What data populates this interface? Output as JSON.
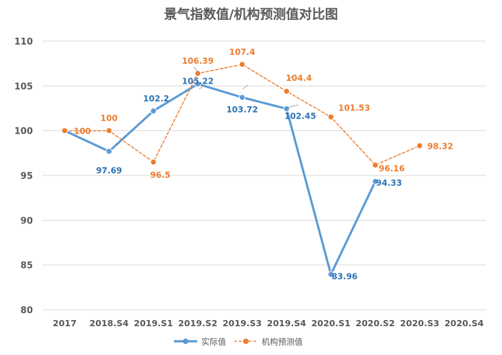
{
  "chart_data": {
    "type": "line",
    "title": "景气指数值/机构预测值对比图",
    "categories": [
      "2017",
      "2018.S4",
      "2019.S1",
      "2019.S2",
      "2019.S3",
      "2019.S4",
      "2020.S1",
      "2020.S2",
      "2020.S3",
      "2020.S4"
    ],
    "ylim": [
      80,
      110
    ],
    "yticks": [
      80,
      85,
      90,
      95,
      100,
      105,
      110
    ],
    "grid": true,
    "legend_position": "bottom",
    "series": [
      {
        "name": "实际值",
        "color": "#5B9BD5",
        "style": "solid",
        "values": [
          100,
          97.69,
          102.2,
          105.22,
          103.72,
          102.45,
          83.96,
          94.33,
          null,
          null
        ],
        "labels": [
          "",
          "97.69",
          "102.2",
          "105.22",
          "103.72",
          "102.45",
          "83.96",
          "94.33",
          "",
          ""
        ]
      },
      {
        "name": "机构预测值",
        "color": "#ED7D31",
        "style": "dashed",
        "values": [
          100,
          100,
          96.5,
          106.39,
          107.4,
          104.4,
          101.53,
          96.16,
          98.32,
          null
        ],
        "labels": [
          "100",
          "100",
          "96.5",
          "106.39",
          "107.4",
          "104.4",
          "101.53",
          "96.16",
          "98.32",
          ""
        ]
      }
    ]
  }
}
